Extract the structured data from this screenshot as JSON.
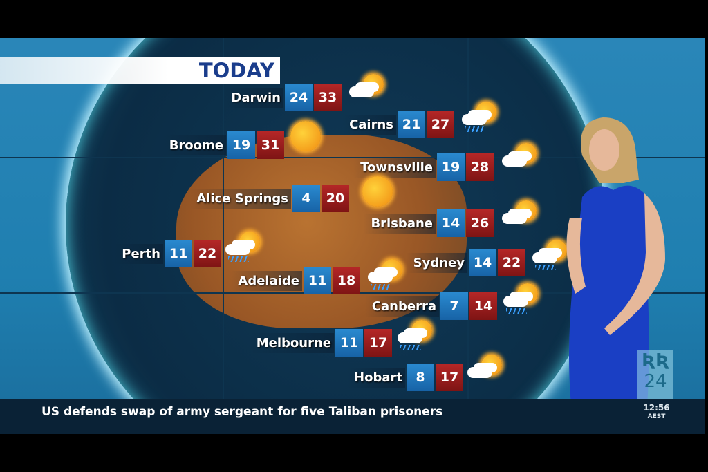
{
  "title": "TODAY",
  "cities": [
    {
      "name": "Darwin",
      "min": "24",
      "max": "33",
      "icon": "sun-cloud-icon"
    },
    {
      "name": "Broome",
      "min": "19",
      "max": "31",
      "icon": "sun-icon"
    },
    {
      "name": "Cairns",
      "min": "21",
      "max": "27",
      "icon": "rain-sun-icon"
    },
    {
      "name": "Townsville",
      "min": "19",
      "max": "28",
      "icon": "sun-cloud-icon"
    },
    {
      "name": "Alice Springs",
      "min": "4",
      "max": "20",
      "icon": "sun-icon"
    },
    {
      "name": "Brisbane",
      "min": "14",
      "max": "26",
      "icon": "sun-cloud-icon"
    },
    {
      "name": "Perth",
      "min": "11",
      "max": "22",
      "icon": "rain-sun-icon"
    },
    {
      "name": "Sydney",
      "min": "14",
      "max": "22",
      "icon": "rain-sun-icon"
    },
    {
      "name": "Adelaide",
      "min": "11",
      "max": "18",
      "icon": "rain-sun-icon"
    },
    {
      "name": "Canberra",
      "min": "7",
      "max": "14",
      "icon": "rain-sun-icon"
    },
    {
      "name": "Melbourne",
      "min": "11",
      "max": "17",
      "icon": "rain-sun-icon"
    },
    {
      "name": "Hobart",
      "min": "8",
      "max": "17",
      "icon": "sun-cloud-icon"
    }
  ],
  "ticker": {
    "headline": "US defends swap of army sergeant for five Taliban prisoners",
    "time": "12:56",
    "timezone": "AEST"
  },
  "logo": {
    "text": "ABC 24",
    "number": "24"
  },
  "colors": {
    "min_box": "#1b6fb5",
    "max_box": "#9a1b1b",
    "ticker_bg": "#0a2236",
    "title": "#1a3d8c"
  }
}
